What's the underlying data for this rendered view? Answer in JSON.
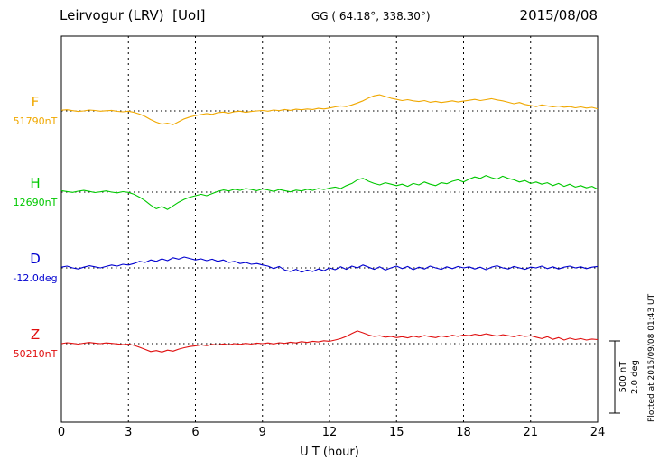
{
  "header": {
    "title": "Leirvogur (LRV)  [UoI]",
    "coords": "GG ( 64.18°, 338.30°)",
    "date": "2015/08/08"
  },
  "x_axis": {
    "label": "U T (hour)",
    "min": 0,
    "max": 24,
    "ticks": [
      0,
      3,
      6,
      9,
      12,
      15,
      18,
      21,
      24
    ]
  },
  "scale_bar": {
    "nt_label": "500 nT",
    "deg_label": "2.0 deg"
  },
  "footer_note": "Plotted at 2015/09/08 01:43 UT",
  "chart_data": {
    "type": "line",
    "title": "Leirvogur (LRV) magnetogram 2015/08/08",
    "xlabel": "U T (hour)",
    "x_range": [
      0,
      24
    ],
    "x_step_hours": 0.25,
    "grid": "vertical-dashed-every-3h",
    "scale": {
      "nT_per_div": 500,
      "deg_per_div": 2.0
    },
    "series": [
      {
        "name": "F",
        "baseline_label": "51790nT",
        "unit": "nT",
        "color": "#f0a800",
        "values": [
          5,
          8,
          2,
          -4,
          0,
          6,
          3,
          -2,
          1,
          4,
          -3,
          -6,
          -2,
          -10,
          -22,
          -38,
          -60,
          -78,
          -92,
          -85,
          -95,
          -75,
          -55,
          -42,
          -32,
          -25,
          -18,
          -24,
          -12,
          -8,
          -15,
          -5,
          -2,
          -10,
          -4,
          0,
          3,
          -2,
          6,
          2,
          10,
          4,
          12,
          8,
          14,
          10,
          18,
          14,
          20,
          28,
          35,
          30,
          42,
          55,
          70,
          90,
          105,
          112,
          100,
          88,
          80,
          72,
          78,
          70,
          65,
          72,
          60,
          66,
          58,
          64,
          70,
          62,
          68,
          74,
          80,
          72,
          78,
          85,
          76,
          70,
          60,
          50,
          58,
          45,
          38,
          30,
          42,
          35,
          28,
          34,
          26,
          30,
          22,
          28,
          20,
          25,
          15
        ]
      },
      {
        "name": "H",
        "baseline_label": "12690nT",
        "unit": "nT",
        "color": "#00c800",
        "values": [
          10,
          4,
          -2,
          6,
          12,
          5,
          -3,
          2,
          8,
          0,
          -5,
          3,
          -2,
          -15,
          -35,
          -60,
          -90,
          -115,
          -100,
          -120,
          -95,
          -70,
          -50,
          -35,
          -25,
          -15,
          -25,
          -10,
          5,
          15,
          8,
          20,
          12,
          25,
          18,
          10,
          22,
          15,
          5,
          18,
          10,
          2,
          14,
          8,
          20,
          12,
          25,
          18,
          28,
          35,
          25,
          45,
          60,
          85,
          95,
          75,
          60,
          50,
          65,
          55,
          45,
          55,
          40,
          60,
          50,
          70,
          55,
          45,
          65,
          58,
          75,
          85,
          70,
          90,
          105,
          95,
          115,
          100,
          90,
          110,
          95,
          85,
          70,
          80,
          60,
          70,
          55,
          65,
          45,
          60,
          40,
          55,
          35,
          45,
          30,
          40,
          20
        ]
      },
      {
        "name": "D",
        "baseline_label": "-12.0deg",
        "unit": "deg",
        "color": "#0000d0",
        "values": [
          0.02,
          0.05,
          0,
          -0.03,
          0.02,
          0.06,
          0.03,
          0,
          0.04,
          0.08,
          0.05,
          0.1,
          0.08,
          0.12,
          0.18,
          0.15,
          0.22,
          0.18,
          0.25,
          0.2,
          0.28,
          0.24,
          0.3,
          0.26,
          0.22,
          0.25,
          0.2,
          0.24,
          0.18,
          0.22,
          0.15,
          0.18,
          0.12,
          0.15,
          0.1,
          0.12,
          0.08,
          0.05,
          -0.02,
          0.04,
          -0.06,
          -0.1,
          -0.04,
          -0.12,
          -0.06,
          -0.1,
          -0.03,
          -0.08,
          0,
          -0.05,
          0.03,
          -0.04,
          0.05,
          0,
          0.08,
          0.02,
          -0.04,
          0.03,
          -0.06,
          0,
          0.05,
          -0.02,
          0.04,
          -0.05,
          0.02,
          -0.03,
          0.05,
          0,
          -0.04,
          0.03,
          -0.02,
          0.04,
          0,
          0.03,
          -0.03,
          0.02,
          -0.05,
          0.02,
          0.06,
          0,
          -0.03,
          0.04,
          0,
          -0.04,
          0.02,
          0,
          0.05,
          -0.02,
          0.03,
          -0.03,
          0.02,
          0.05,
          0,
          0.03,
          -0.02,
          0.02,
          0.04
        ]
      },
      {
        "name": "Z",
        "baseline_label": "50210nT",
        "unit": "nT",
        "color": "#e01010",
        "values": [
          0,
          6,
          2,
          -3,
          3,
          8,
          4,
          0,
          5,
          2,
          -2,
          -6,
          -3,
          -12,
          -25,
          -40,
          -55,
          -48,
          -58,
          -45,
          -52,
          -38,
          -28,
          -20,
          -15,
          -8,
          -14,
          -5,
          -10,
          -2,
          -8,
          0,
          -5,
          2,
          -3,
          4,
          0,
          5,
          -2,
          6,
          2,
          10,
          5,
          14,
          8,
          16,
          12,
          20,
          16,
          25,
          35,
          50,
          70,
          88,
          75,
          60,
          50,
          55,
          45,
          50,
          42,
          48,
          40,
          52,
          44,
          56,
          48,
          42,
          54,
          46,
          58,
          50,
          60,
          55,
          65,
          58,
          68,
          60,
          52,
          62,
          55,
          48,
          58,
          50,
          55,
          45,
          35,
          48,
          30,
          42,
          25,
          38,
          28,
          35,
          25,
          32,
          28
        ]
      }
    ]
  }
}
